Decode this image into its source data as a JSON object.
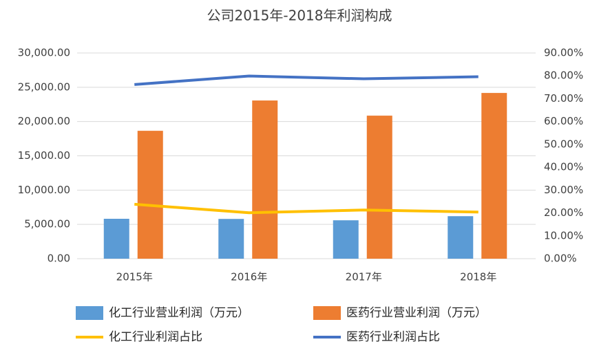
{
  "chart_data": {
    "type": "bar-line",
    "title": "公司2015年-2018年利润构成",
    "categories": [
      "2015年",
      "2016年",
      "2017年",
      "2018年"
    ],
    "series": [
      {
        "name": "化工行业营业利润（万元）",
        "type": "bar",
        "color": "#5b9bd5",
        "values": [
          5820,
          5800,
          5600,
          6200
        ]
      },
      {
        "name": "医药行业营业利润（万元）",
        "type": "bar",
        "color": "#ed7d31",
        "values": [
          18650,
          23070,
          20860,
          24170
        ]
      },
      {
        "name": "化工行业利润占比",
        "type": "line",
        "axis": "y2",
        "color": "#ffc000",
        "values": [
          23.8,
          20.1,
          21.3,
          20.4
        ]
      },
      {
        "name": "医药行业利润占比",
        "type": "line",
        "axis": "y2",
        "color": "#4472c4",
        "values": [
          76.2,
          79.9,
          78.7,
          79.6
        ]
      }
    ],
    "ylim": [
      0,
      30000
    ],
    "yticks": [
      {
        "value": 0,
        "label": "0.00"
      },
      {
        "value": 5000,
        "label": "5,000.00"
      },
      {
        "value": 10000,
        "label": "10,000.00"
      },
      {
        "value": 15000,
        "label": "15,000.00"
      },
      {
        "value": 20000,
        "label": "20,000.00"
      },
      {
        "value": 25000,
        "label": "25,000.00"
      },
      {
        "value": 30000,
        "label": "30,000.00"
      }
    ],
    "y2lim": [
      0,
      90
    ],
    "y2ticks": [
      {
        "value": 0,
        "label": "0.00%"
      },
      {
        "value": 10,
        "label": "10.00%"
      },
      {
        "value": 20,
        "label": "20.00%"
      },
      {
        "value": 30,
        "label": "30.00%"
      },
      {
        "value": 40,
        "label": "40.00%"
      },
      {
        "value": 50,
        "label": "50.00%"
      },
      {
        "value": 60,
        "label": "60.00%"
      },
      {
        "value": 70,
        "label": "70.00%"
      },
      {
        "value": 80,
        "label": "80.00%"
      },
      {
        "value": 90,
        "label": "90.00%"
      }
    ],
    "grid": true
  }
}
